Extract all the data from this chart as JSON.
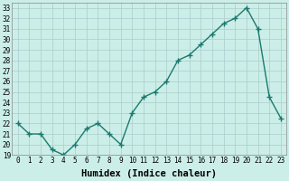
{
  "x": [
    0,
    1,
    2,
    3,
    4,
    5,
    6,
    7,
    8,
    9,
    10,
    11,
    12,
    13,
    14,
    15,
    16,
    17,
    18,
    19,
    20,
    21,
    22,
    23
  ],
  "y": [
    22,
    21,
    21,
    19.5,
    19,
    20,
    21.5,
    22,
    21,
    20,
    23,
    24.5,
    25,
    26,
    28,
    28.5,
    29.5,
    30.5,
    31.5,
    32,
    33,
    31,
    24.5,
    22.5
  ],
  "line_color": "#1a7a6e",
  "marker": "+",
  "marker_size": 4,
  "marker_lw": 1.0,
  "background_color": "#cceee8",
  "grid_color": "#aacccc",
  "xlabel": "Humidex (Indice chaleur)",
  "ylim": [
    19,
    33.5
  ],
  "xlim": [
    -0.5,
    23.5
  ],
  "yticks": [
    19,
    20,
    21,
    22,
    23,
    24,
    25,
    26,
    27,
    28,
    29,
    30,
    31,
    32,
    33
  ],
  "xticks": [
    0,
    1,
    2,
    3,
    4,
    5,
    6,
    7,
    8,
    9,
    10,
    11,
    12,
    13,
    14,
    15,
    16,
    17,
    18,
    19,
    20,
    21,
    22,
    23
  ],
  "tick_fontsize": 5.5,
  "xlabel_fontsize": 7.5,
  "line_width": 1.0
}
